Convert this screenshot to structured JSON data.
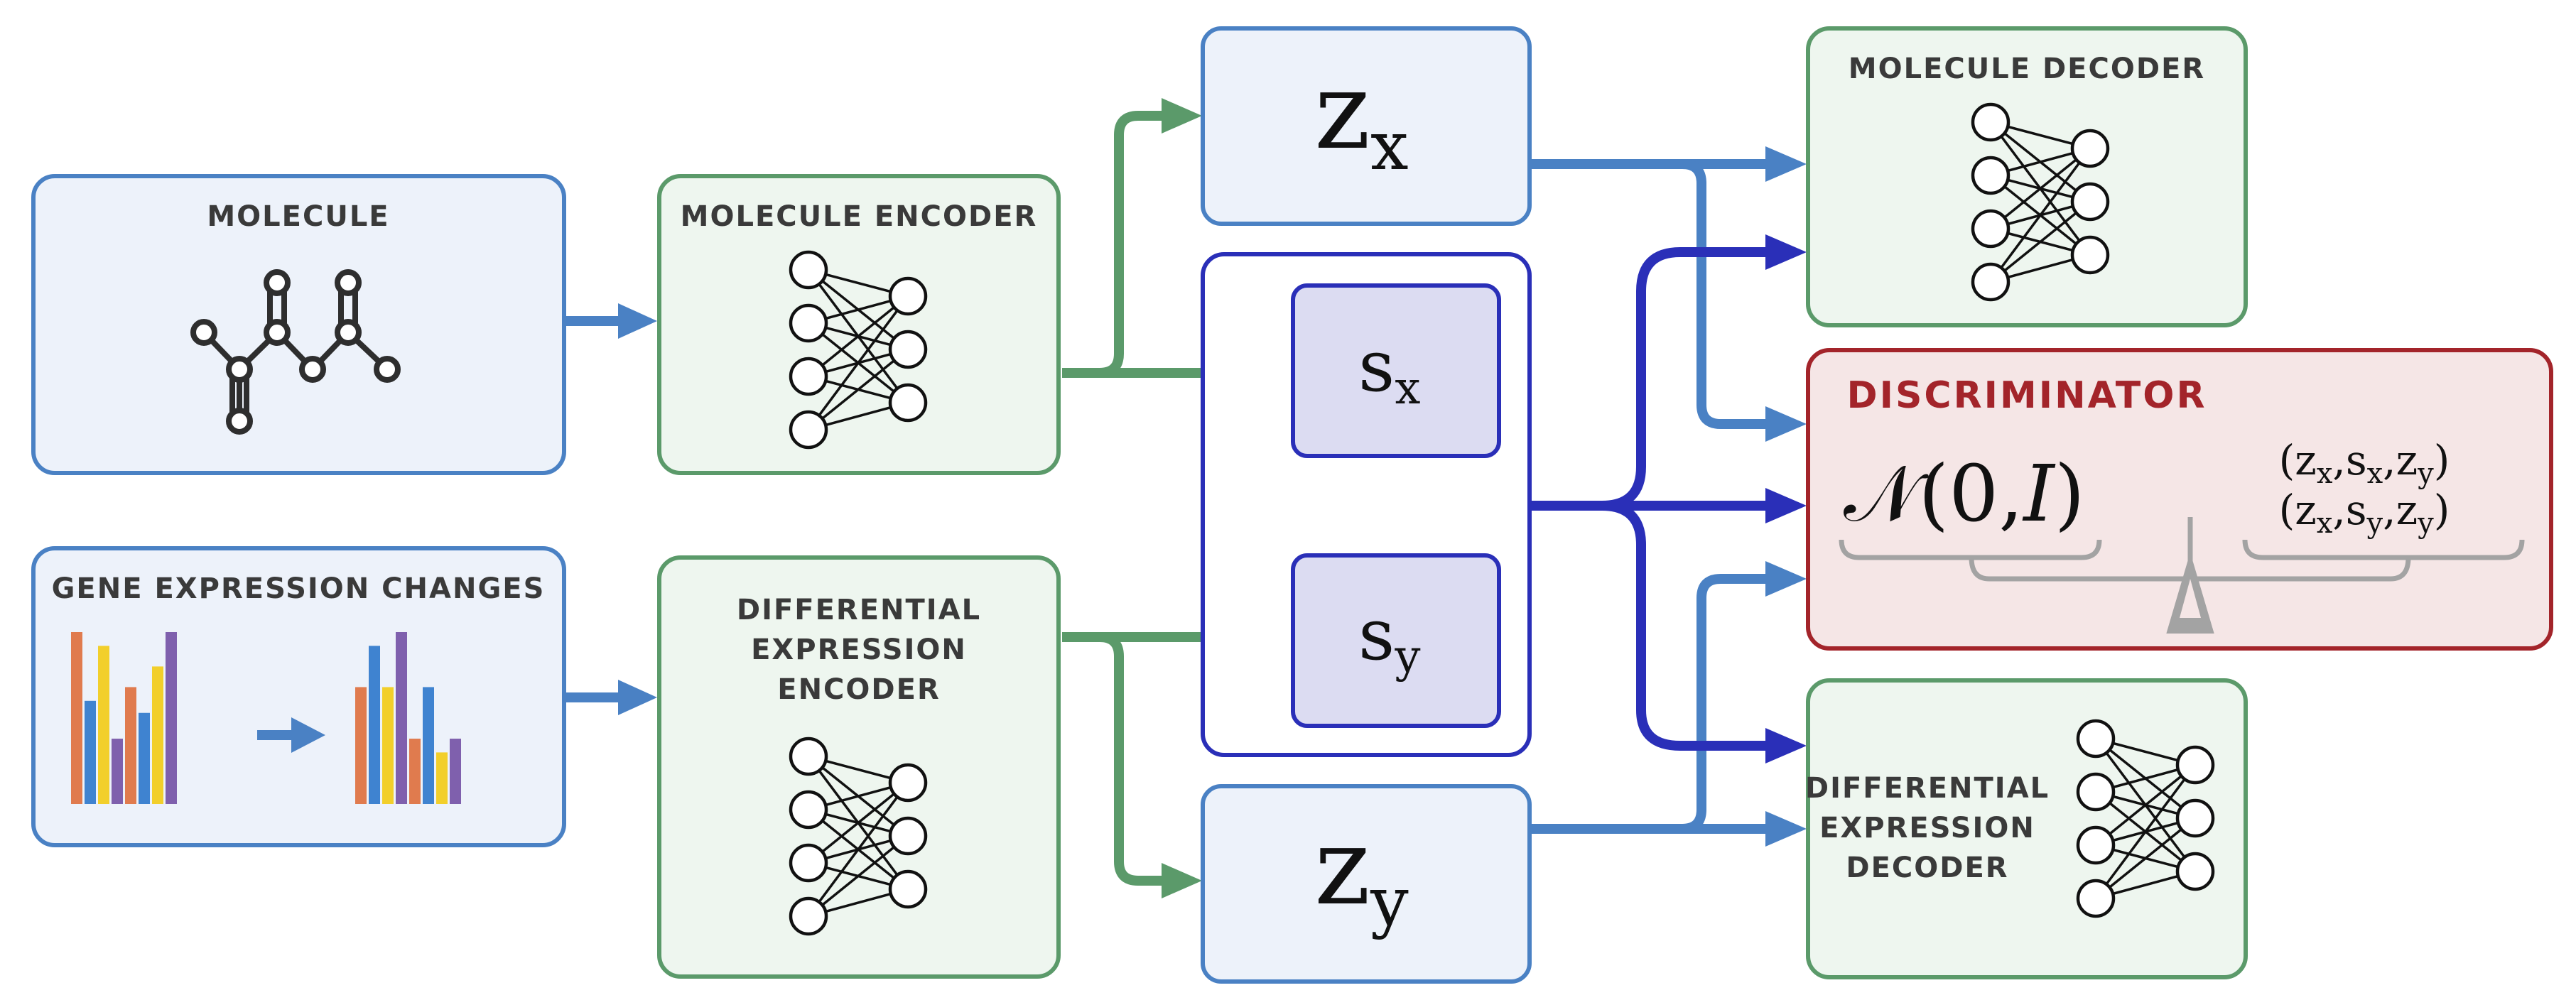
{
  "colors": {
    "blue_border": "#4a81c4",
    "blue_fill": "#edf2fa",
    "green_border": "#5b9a6a",
    "green_fill": "#eef6ef",
    "navy_border": "#2a2fb8",
    "navy_fill": "#dcdcf2",
    "red_border": "#a3242a",
    "red_fill": "#f5e6e6",
    "arrow_blue": "#4a81c4",
    "arrow_green": "#5b9a6a",
    "arrow_navy": "#2a2fb8",
    "bar_orange": "#e07b4e",
    "bar_blue": "#3f83d0",
    "bar_yellow": "#f2cf2b",
    "bar_purple": "#7f60ad"
  },
  "inputs": {
    "molecule": {
      "title": "MOLECULE",
      "icon": "molecule-structure-icon"
    },
    "gene": {
      "title": "GENE EXPRESSION CHANGES",
      "icon": "bar-chart-icon",
      "bars_before": [
        1.0,
        0.6,
        0.92,
        0.38,
        0.68,
        0.53,
        0.8,
        1.0
      ],
      "bars_after": [
        0.68,
        0.92,
        0.68,
        1.0,
        0.38,
        0.68,
        0.3,
        0.38
      ]
    }
  },
  "encoders": {
    "molecule": {
      "title": "MOLECULE ENCODER",
      "icon": "neural-network-icon"
    },
    "expression": {
      "title_lines": [
        "DIFFERENTIAL",
        "EXPRESSION",
        "ENCODER"
      ],
      "icon": "neural-network-icon"
    }
  },
  "latents": {
    "zx": {
      "base": "z",
      "sub": "x"
    },
    "sx": {
      "base": "s",
      "sub": "x"
    },
    "sy": {
      "base": "s",
      "sub": "y"
    },
    "zy": {
      "base": "z",
      "sub": "y"
    }
  },
  "decoders": {
    "molecule": {
      "title": "MOLECULE DECODER",
      "icon": "neural-network-icon"
    },
    "expression": {
      "title_lines": [
        "DIFFERENTIAL",
        "EXPRESSION",
        "DECODER"
      ],
      "icon": "neural-network-icon"
    }
  },
  "discriminator": {
    "title": "DISCRIMINATOR",
    "prior": "𝒩(0,",
    "prior_var": "I",
    "prior_close": ")",
    "tuple_1": "(zx,sx,zy)",
    "tuple_2": "(zx,sy,zy)",
    "icon": "balance-scale-icon"
  }
}
